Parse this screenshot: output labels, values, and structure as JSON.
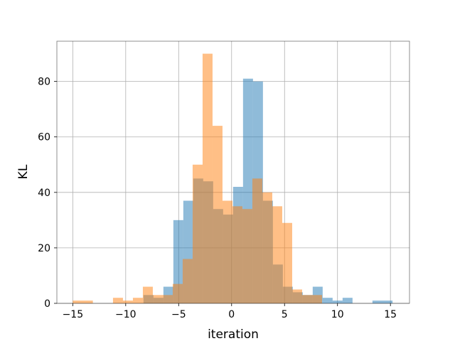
{
  "chart_data": {
    "type": "bar",
    "title": "",
    "xlabel": "iteration",
    "ylabel": "KL",
    "xlim": [
      -16.5,
      16.8
    ],
    "ylim": [
      0,
      94.5
    ],
    "xticks": [
      -15,
      -10,
      -5,
      0,
      5,
      10,
      15
    ],
    "yticks": [
      0,
      20,
      40,
      60,
      80
    ],
    "grid": true,
    "series": [
      {
        "color": "#1f77b4",
        "alpha": 0.5,
        "bins": [
          {
            "x0": -8.32,
            "x1": -7.38,
            "value": 3
          },
          {
            "x0": -7.38,
            "x1": -6.44,
            "value": 2
          },
          {
            "x0": -6.44,
            "x1": -5.5,
            "value": 6
          },
          {
            "x0": -5.5,
            "x1": -4.56,
            "value": 30
          },
          {
            "x0": -4.56,
            "x1": -3.62,
            "value": 37
          },
          {
            "x0": -3.62,
            "x1": -2.68,
            "value": 45
          },
          {
            "x0": -2.68,
            "x1": -1.74,
            "value": 44
          },
          {
            "x0": -1.74,
            "x1": -0.8,
            "value": 34
          },
          {
            "x0": -0.8,
            "x1": 0.14,
            "value": 32
          },
          {
            "x0": 0.14,
            "x1": 1.08,
            "value": 42
          },
          {
            "x0": 1.08,
            "x1": 2.02,
            "value": 81
          },
          {
            "x0": 2.02,
            "x1": 2.96,
            "value": 80
          },
          {
            "x0": 2.96,
            "x1": 3.9,
            "value": 37
          },
          {
            "x0": 3.9,
            "x1": 4.84,
            "value": 14
          },
          {
            "x0": 4.84,
            "x1": 5.78,
            "value": 6
          },
          {
            "x0": 5.78,
            "x1": 6.72,
            "value": 4
          },
          {
            "x0": 6.72,
            "x1": 7.66,
            "value": 3
          },
          {
            "x0": 7.66,
            "x1": 8.6,
            "value": 6
          },
          {
            "x0": 8.6,
            "x1": 9.54,
            "value": 2
          },
          {
            "x0": 9.54,
            "x1": 10.48,
            "value": 1
          },
          {
            "x0": 10.48,
            "x1": 11.42,
            "value": 2
          },
          {
            "x0": 13.3,
            "x1": 15.2,
            "value": 1
          }
        ]
      },
      {
        "color": "#ff7f0e",
        "alpha": 0.5,
        "bins": [
          {
            "x0": -15.0,
            "x1": -13.1,
            "value": 1
          },
          {
            "x0": -11.2,
            "x1": -10.26,
            "value": 2
          },
          {
            "x0": -10.26,
            "x1": -9.32,
            "value": 1
          },
          {
            "x0": -9.32,
            "x1": -8.38,
            "value": 2
          },
          {
            "x0": -8.38,
            "x1": -7.44,
            "value": 6
          },
          {
            "x0": -7.44,
            "x1": -6.5,
            "value": 3
          },
          {
            "x0": -6.5,
            "x1": -5.56,
            "value": 3
          },
          {
            "x0": -5.56,
            "x1": -4.62,
            "value": 7
          },
          {
            "x0": -4.62,
            "x1": -3.68,
            "value": 16
          },
          {
            "x0": -3.68,
            "x1": -2.74,
            "value": 50
          },
          {
            "x0": -2.74,
            "x1": -1.8,
            "value": 90
          },
          {
            "x0": -1.8,
            "x1": -0.86,
            "value": 64
          },
          {
            "x0": -0.86,
            "x1": 0.08,
            "value": 37
          },
          {
            "x0": 0.08,
            "x1": 1.02,
            "value": 35
          },
          {
            "x0": 1.02,
            "x1": 1.96,
            "value": 34
          },
          {
            "x0": 1.96,
            "x1": 2.9,
            "value": 45
          },
          {
            "x0": 2.9,
            "x1": 3.84,
            "value": 40
          },
          {
            "x0": 3.84,
            "x1": 4.78,
            "value": 35
          },
          {
            "x0": 4.78,
            "x1": 5.72,
            "value": 29
          },
          {
            "x0": 5.72,
            "x1": 6.66,
            "value": 5
          },
          {
            "x0": 6.66,
            "x1": 7.6,
            "value": 3
          },
          {
            "x0": 7.6,
            "x1": 8.54,
            "value": 3
          }
        ]
      }
    ]
  }
}
